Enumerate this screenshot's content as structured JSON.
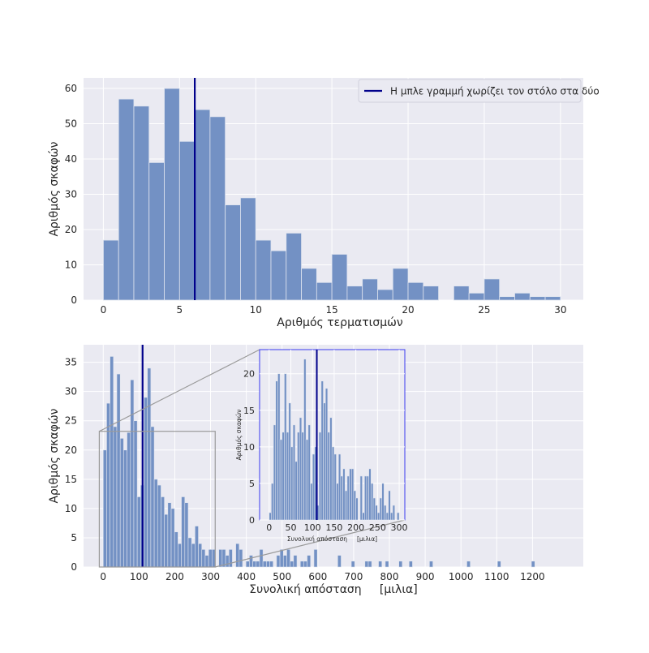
{
  "chart_data": [
    {
      "type": "bar",
      "subtype": "histogram",
      "title": "",
      "xlabel": "Αριθμός τερματισμών",
      "ylabel": "Αριθμός σκαφών",
      "bin_start": 0,
      "bin_width": 1,
      "counts": [
        17,
        57,
        55,
        39,
        60,
        45,
        54,
        52,
        27,
        29,
        17,
        14,
        19,
        9,
        5,
        13,
        4,
        6,
        3,
        9,
        5,
        4,
        0,
        4,
        2,
        6,
        1,
        2,
        1,
        1
      ],
      "xlim": [
        -1.3,
        31.5
      ],
      "ylim": [
        0,
        63
      ],
      "xticks": [
        "0",
        "5",
        "10",
        "15",
        "20",
        "25",
        "30"
      ],
      "xtick_values": [
        0,
        5,
        10,
        15,
        20,
        25,
        30
      ],
      "yticks": [
        "0",
        "10",
        "20",
        "30",
        "40",
        "50",
        "60"
      ],
      "ytick_values": [
        0,
        10,
        20,
        30,
        40,
        50,
        60
      ],
      "vline": 6,
      "legend": {
        "label": "Η μπλε γραμμή χωρίζει τον στόλο στα δύο",
        "placement": "top-right"
      },
      "grid": true
    },
    {
      "type": "bar",
      "subtype": "histogram",
      "title": "",
      "xlabel": "Συνολική απόσταση     [μιλια]",
      "ylabel": "Αριθμός σκαφών",
      "bin_start": 0,
      "bin_width": 9.5,
      "counts": [
        20,
        28,
        36,
        24,
        33,
        22,
        20,
        23,
        32,
        25,
        12,
        14,
        29,
        34,
        24,
        15,
        14,
        12,
        9,
        11,
        10,
        6,
        4,
        12,
        11,
        5,
        4,
        7,
        4,
        3,
        2,
        3,
        3,
        0,
        3,
        3,
        2,
        3,
        0,
        4,
        3,
        0,
        1,
        2,
        1,
        1,
        3,
        1,
        1,
        1,
        0,
        2,
        3,
        2,
        3,
        1,
        2,
        0,
        1,
        1,
        2,
        0,
        3,
        0,
        0,
        0,
        0,
        0,
        0,
        2,
        0,
        0,
        0,
        1,
        0,
        0,
        0,
        1,
        1,
        0,
        0,
        1,
        0,
        1,
        0,
        0,
        0,
        1,
        0,
        0,
        1,
        0,
        0,
        0,
        0,
        0,
        1,
        0,
        0,
        0,
        0,
        0,
        0,
        0,
        0,
        0,
        0,
        1,
        0,
        0,
        0,
        0,
        0,
        0,
        0,
        0,
        1,
        0,
        0,
        0,
        0,
        0,
        0,
        0,
        0,
        0,
        1
      ],
      "xlim": [
        -55,
        1342
      ],
      "ylim": [
        0,
        38
      ],
      "xticks": [
        "0",
        "100",
        "200",
        "300",
        "400",
        "500",
        "600",
        "700",
        "800",
        "900",
        "1000",
        "1100",
        "1200"
      ],
      "xtick_values": [
        0,
        100,
        200,
        300,
        400,
        500,
        600,
        700,
        800,
        900,
        1000,
        1100,
        1200
      ],
      "yticks": [
        "0",
        "5",
        "10",
        "15",
        "20",
        "25",
        "30",
        "35"
      ],
      "ytick_values": [
        0,
        5,
        10,
        15,
        20,
        25,
        30,
        35
      ],
      "vline": 110,
      "zoom_region": {
        "x": [
          -11,
          313
        ],
        "y": [
          0,
          23.2
        ]
      },
      "grid": true
    },
    {
      "type": "bar",
      "subtype": "histogram-inset",
      "title": "",
      "xlabel": "Συνολική απόσταση     [μιλια]",
      "ylabel": "Αριθμός σκαφών",
      "bin_start": 0,
      "bin_width": 5,
      "counts": [
        1,
        5,
        13,
        19,
        20,
        11,
        12,
        20,
        12,
        16,
        10,
        13,
        8,
        12,
        14,
        12,
        22,
        11,
        13,
        5,
        9,
        10,
        2,
        12,
        19,
        16,
        18,
        12,
        14,
        10,
        9,
        5,
        9,
        6,
        7,
        4,
        6,
        7,
        7,
        4,
        3,
        0,
        6,
        1,
        6,
        6,
        7,
        5,
        3,
        2,
        1,
        3,
        5,
        2,
        1,
        4,
        1,
        2,
        0,
        1
      ],
      "xlim": [
        -22,
        313
      ],
      "ylim": [
        0,
        23.3
      ],
      "xticks": [
        "0",
        "50",
        "100",
        "150",
        "200",
        "250",
        "300"
      ],
      "xtick_values": [
        0,
        50,
        100,
        150,
        200,
        250,
        300
      ],
      "yticks": [
        "0",
        "5",
        "10",
        "15",
        "20"
      ],
      "ytick_values": [
        0,
        5,
        10,
        15,
        20
      ],
      "vline": 110,
      "grid": true
    }
  ],
  "colors": {
    "axes_bg": "#eaeaf2",
    "grid": "#ffffff",
    "bar": "#7391c4",
    "bar_edge": "#dfe4ef",
    "vline": "#00008b",
    "inset_frame": "#3b3bf0",
    "zoom_box": "#9a9a9a"
  }
}
